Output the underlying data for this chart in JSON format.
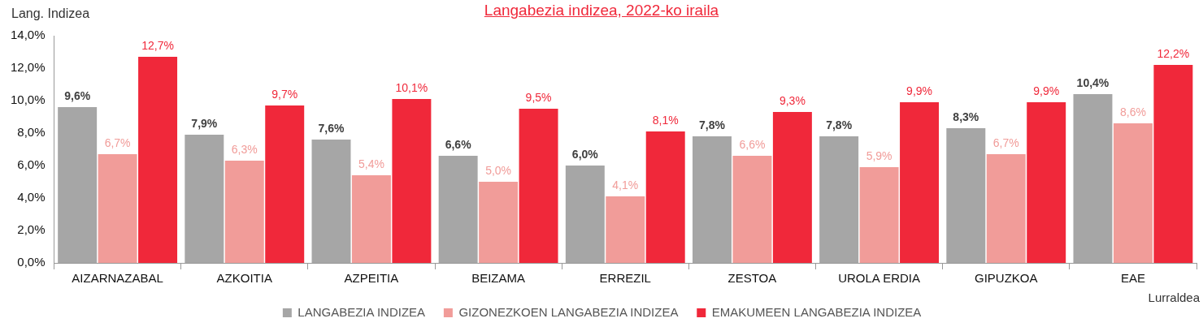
{
  "chart_data": {
    "type": "bar",
    "title": "Langabezia indizea, 2022-ko iraila",
    "ylabel": "Lang. Indizea",
    "xlabel": "Lurraldea",
    "categories": [
      "AIZARNAZABAL",
      "AZKOITIA",
      "AZPEITIA",
      "BEIZAMA",
      "ERREZIL",
      "ZESTOA",
      "UROLA ERDIA",
      "GIPUZKOA",
      "EAE"
    ],
    "series": [
      {
        "name": "LANGABEZIA INDIZEA",
        "color": "#a6a6a6",
        "values": [
          9.6,
          7.9,
          7.6,
          6.6,
          6.0,
          7.8,
          7.8,
          8.3,
          10.4
        ],
        "value_labels": [
          "9,6%",
          "7,9%",
          "7,6%",
          "6,6%",
          "6,0%",
          "7,8%",
          "7,8%",
          "8,3%",
          "10,4%"
        ]
      },
      {
        "name": "GIZONEZKOEN LANGABEZIA INDIZEA",
        "color": "#f19c99",
        "values": [
          6.7,
          6.3,
          5.4,
          5.0,
          4.1,
          6.6,
          5.9,
          6.7,
          8.6
        ],
        "value_labels": [
          "6,7%",
          "6,3%",
          "5,4%",
          "5,0%",
          "4,1%",
          "6,6%",
          "5,9%",
          "6,7%",
          "8,6%"
        ]
      },
      {
        "name": "EMAKUMEEN LANGABEZIA INDIZEA",
        "color": "#f0283a",
        "values": [
          12.7,
          9.7,
          10.1,
          9.5,
          8.1,
          9.3,
          9.9,
          9.9,
          12.2
        ],
        "value_labels": [
          "12,7%",
          "9,7%",
          "10,1%",
          "9,5%",
          "8,1%",
          "9,3%",
          "9,9%",
          "9,9%",
          "12,2%"
        ]
      }
    ],
    "ylim": [
      0,
      14
    ],
    "yticks": [
      {
        "value": 0,
        "label": "0,0%"
      },
      {
        "value": 2,
        "label": "2,0%"
      },
      {
        "value": 4,
        "label": "4,0%"
      },
      {
        "value": 6,
        "label": "6,0%"
      },
      {
        "value": 8,
        "label": "8,0%"
      },
      {
        "value": 10,
        "label": "10,0%"
      },
      {
        "value": 12,
        "label": "12,0%"
      },
      {
        "value": 14,
        "label": "14,0%"
      }
    ],
    "grid": false,
    "legend": "bottom"
  }
}
